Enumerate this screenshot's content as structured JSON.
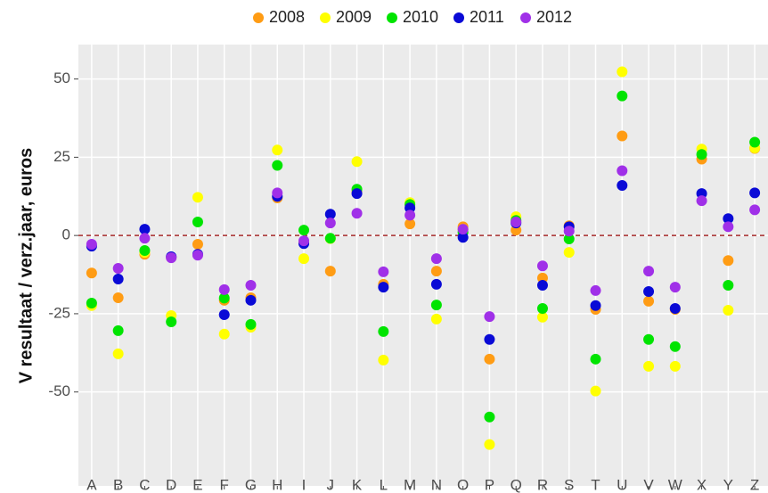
{
  "chart_data": {
    "type": "scatter",
    "y_label": "V resultaat / verz.jaar, euros",
    "categories": [
      "A",
      "B",
      "C",
      "D",
      "E",
      "F",
      "G",
      "H",
      "I",
      "J",
      "K",
      "L",
      "M",
      "N",
      "O",
      "P",
      "Q",
      "R",
      "S",
      "T",
      "U",
      "V",
      "W",
      "X",
      "Y",
      "Z"
    ],
    "series": [
      {
        "name": "2008",
        "color": "#ff9c14",
        "values": [
          -12,
          -19.9,
          -6,
          -7,
          -2.8,
          -20.7,
          -19.9,
          12,
          -2.3,
          -11.4,
          14,
          -15.6,
          3.7,
          -11.4,
          2.8,
          -39.5,
          1.7,
          -13.6,
          3.1,
          -23.6,
          31.8,
          -21,
          -23.6,
          24.4,
          -8,
          27.8
        ]
      },
      {
        "name": "2009",
        "color": "#ffff00",
        "values": [
          -22.4,
          -37.8,
          -5.4,
          -25.6,
          12.2,
          -31.5,
          -29.3,
          27.3,
          -7.4,
          -1,
          23.6,
          -39.8,
          10.5,
          -26.7,
          2,
          -66.8,
          6,
          -26.1,
          -5.4,
          -49.7,
          52.3,
          -41.8,
          -41.8,
          27.6,
          -23.9,
          28
        ]
      },
      {
        "name": "2010",
        "color": "#00e400",
        "values": [
          -21.6,
          -30.4,
          -4.8,
          -27.6,
          4.3,
          -20,
          -28.4,
          22.4,
          1.7,
          -0.9,
          14.8,
          -30.7,
          9.9,
          -22.2,
          1,
          -58,
          4.8,
          -23.3,
          -1.1,
          -39.5,
          44.6,
          -33.2,
          -35.5,
          25.9,
          -15.9,
          29.8
        ]
      },
      {
        "name": "2011",
        "color": "#0a0ad6",
        "values": [
          -3.4,
          -13.9,
          2,
          -6.8,
          -6,
          -25.3,
          -20.7,
          12.5,
          -2.6,
          6.8,
          13.4,
          -16.5,
          8.8,
          -15.6,
          -0.6,
          -33.2,
          4,
          -15.9,
          2.8,
          -22.4,
          16,
          -17.9,
          -23.3,
          13.4,
          5.4,
          13.6
        ]
      },
      {
        "name": "2012",
        "color": "#a030e8",
        "values": [
          -2.8,
          -10.5,
          -0.9,
          -7.1,
          -6.3,
          -17.3,
          -15.9,
          13.6,
          -1.7,
          4,
          7.1,
          -11.6,
          6.5,
          -7.4,
          2,
          -25.9,
          4.3,
          -9.7,
          1.4,
          -17.6,
          20.7,
          -11.4,
          -16.5,
          11.1,
          2.8,
          8.2
        ]
      }
    ],
    "ylim": [
      -80,
      61
    ],
    "yticks": [
      -50,
      -25,
      0,
      25,
      50
    ],
    "hline": 0,
    "hline_color": "#a52a2a",
    "grid": true,
    "legend": "top"
  }
}
